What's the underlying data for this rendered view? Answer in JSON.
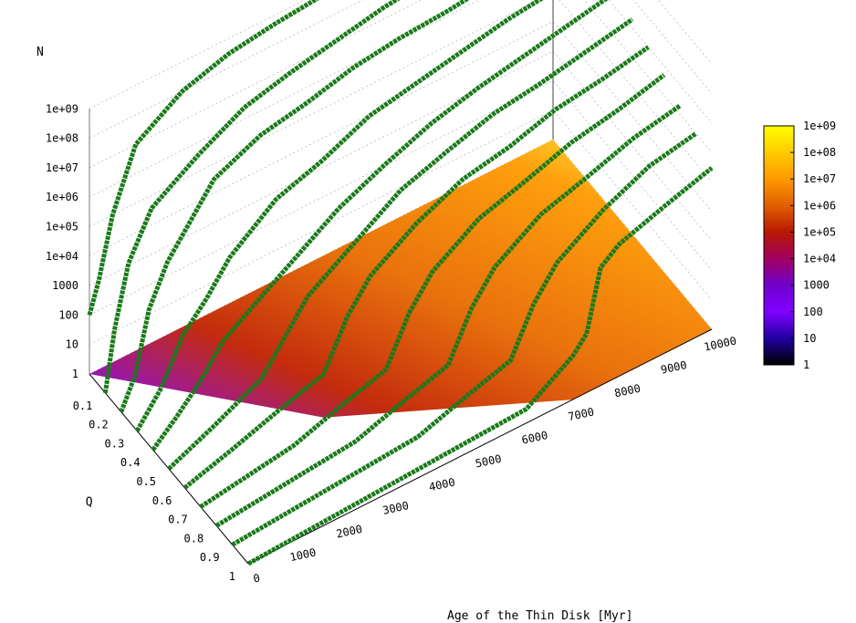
{
  "chart_data": {
    "type": "surface3d",
    "title": "",
    "zlabel": "N",
    "xlabel": "Age of the Thin Disk [Myr]",
    "ylabel": "Q",
    "z_scale": "log",
    "z_ticks": [
      "1",
      "10",
      "100",
      "1000",
      "1e+04",
      "1e+05",
      "1e+06",
      "1e+07",
      "1e+08",
      "1e+09"
    ],
    "x_ticks": [
      "0",
      "1000",
      "2000",
      "3000",
      "4000",
      "5000",
      "6000",
      "7000",
      "8000",
      "9000",
      "10000"
    ],
    "y_ticks": [
      "0.1",
      "0.2",
      "0.3",
      "0.4",
      "0.5",
      "0.6",
      "0.7",
      "0.8",
      "0.9",
      "1"
    ],
    "xlim": [
      0,
      10000
    ],
    "ylim": [
      0,
      1
    ],
    "zlim": [
      1,
      1000000000
    ],
    "colorbar": {
      "ticks": [
        "1e+09",
        "1e+08",
        "1e+07",
        "1e+06",
        "1e+05",
        "1e+04",
        "1000",
        "100",
        "10",
        "1"
      ],
      "colors": [
        "#ffff00",
        "#ffcc00",
        "#ff9900",
        "#e06000",
        "#b81800",
        "#a00060",
        "#7000cc",
        "#8000ff",
        "#2000a0",
        "#000000"
      ]
    },
    "series_color": "#1a7a1a",
    "series": [
      {
        "q": 0.0,
        "x": [
          0,
          200,
          500,
          1000,
          2000,
          3000,
          4000,
          5000,
          6000,
          7000,
          8000,
          9000,
          10000
        ],
        "z": [
          100,
          1000,
          100000,
          10000000,
          100000000,
          300000000,
          500000000,
          700000000,
          800000000,
          900000000,
          950000000,
          980000000,
          1000000000
        ]
      },
      {
        "q": 0.1,
        "x": [
          0,
          200,
          500,
          1000,
          2000,
          3000,
          4000,
          5000,
          6000,
          7000,
          8000,
          9000,
          10000
        ],
        "z": [
          1,
          100,
          10000,
          300000,
          3000000,
          20000000,
          50000000,
          100000000,
          200000000,
          300000000,
          400000000,
          500000000,
          600000000
        ]
      },
      {
        "q": 0.2,
        "x": [
          0,
          300,
          600,
          1000,
          1500,
          2000,
          3000,
          4000,
          5000,
          6000,
          7000,
          8000,
          9000,
          10000
        ],
        "z": [
          1,
          10,
          1000,
          20000,
          200000,
          2000000,
          10000000,
          20000000,
          50000000,
          80000000,
          100000000,
          150000000,
          200000000,
          300000000
        ]
      },
      {
        "q": 0.3,
        "x": [
          0,
          500,
          1000,
          1500,
          2000,
          3000,
          4000,
          5000,
          6000,
          7000,
          8000,
          9000,
          10000
        ],
        "z": [
          1,
          10,
          300,
          2000,
          20000,
          300000,
          1000000,
          5000000,
          10000000,
          20000000,
          40000000,
          60000000,
          100000000
        ]
      },
      {
        "q": 0.4,
        "x": [
          0,
          500,
          1000,
          1500,
          2000,
          3000,
          4000,
          5000,
          6000,
          7000,
          8000,
          9000,
          10000
        ],
        "z": [
          1,
          5,
          30,
          300,
          1000,
          10000,
          100000,
          500000,
          2000000,
          5000000,
          10000000,
          20000000,
          40000000
        ]
      },
      {
        "q": 0.5,
        "x": [
          0,
          1000,
          2000,
          2500,
          3000,
          4000,
          5000,
          6000,
          7000,
          8000,
          9000,
          10000
        ],
        "z": [
          1,
          5,
          30,
          300,
          3000,
          30000,
          300000,
          1000000,
          3000000,
          5000000,
          10000000,
          20000000
        ]
      },
      {
        "q": 0.6,
        "x": [
          0,
          1000,
          2000,
          3000,
          3500,
          4000,
          5000,
          6000,
          7000,
          8000,
          9000,
          10000
        ],
        "z": [
          1,
          3,
          10,
          30,
          1000,
          10000,
          100000,
          500000,
          1000000,
          3000000,
          5000000,
          10000000
        ]
      },
      {
        "q": 0.7,
        "x": [
          0,
          2000,
          3000,
          4000,
          4500,
          5000,
          6000,
          7000,
          8000,
          9000,
          10000
        ],
        "z": [
          1,
          3,
          10,
          30,
          1000,
          10000,
          100000,
          300000,
          1000000,
          2000000,
          5000000
        ]
      },
      {
        "q": 0.8,
        "x": [
          0,
          3000,
          4000,
          5000,
          5500,
          6000,
          7000,
          8000,
          9000,
          10000
        ],
        "z": [
          1,
          3,
          10,
          30,
          1000,
          10000,
          100000,
          300000,
          1000000,
          2000000
        ]
      },
      {
        "q": 0.9,
        "x": [
          0,
          4000,
          5000,
          6000,
          6500,
          7000,
          8000,
          9000,
          10000
        ],
        "z": [
          1,
          3,
          10,
          30,
          1000,
          10000,
          100000,
          500000,
          1000000
        ]
      },
      {
        "q": 1.0,
        "x": [
          0,
          6000,
          7000,
          7300,
          7600,
          8000,
          9000,
          10000
        ],
        "z": [
          1,
          3,
          30,
          100,
          10000,
          30000,
          100000,
          300000
        ]
      }
    ]
  }
}
